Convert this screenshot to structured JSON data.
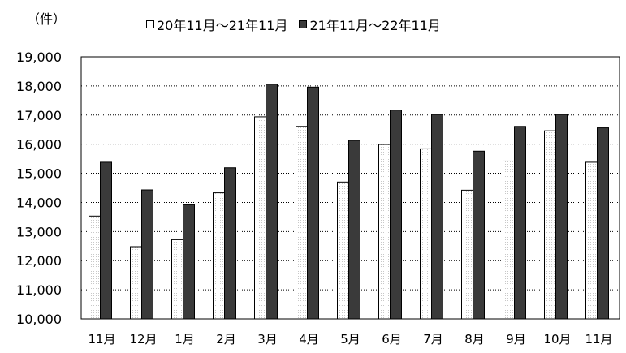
{
  "chart_data": {
    "type": "bar",
    "unit_label": "（件）",
    "categories": [
      "11月",
      "12月",
      "1月",
      "2月",
      "3月",
      "4月",
      "5月",
      "6月",
      "7月",
      "8月",
      "9月",
      "10月",
      "11月"
    ],
    "series": [
      {
        "name": "20年11月～21年11月",
        "color": "#ffffff",
        "values": [
          13530,
          12480,
          12720,
          14330,
          16940,
          16610,
          14700,
          15990,
          15840,
          14420,
          15420,
          16460,
          15380
        ]
      },
      {
        "name": "21年11月～22年11月",
        "color": "#3a3a3a",
        "values": [
          15380,
          14430,
          13920,
          15190,
          18060,
          17960,
          16130,
          17170,
          17020,
          15760,
          16610,
          17020,
          16560
        ]
      }
    ],
    "ylim": [
      10000,
      19000
    ],
    "yticks": [
      "10,000",
      "11,000",
      "12,000",
      "13,000",
      "14,000",
      "15,000",
      "16,000",
      "17,000",
      "18,000",
      "19,000"
    ],
    "grid": true,
    "legend_position": "top"
  }
}
